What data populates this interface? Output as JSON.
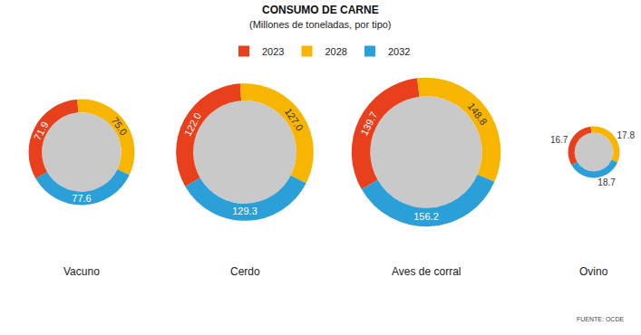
{
  "title": "CONSUMO DE CARNE",
  "subtitle": "(Millones de toneladas, por tipo)",
  "source": "FUENTE: OCDE",
  "chart_data": [
    {
      "type": "pie",
      "title": "Vacuno",
      "categories": [
        "2023",
        "2028",
        "2032"
      ],
      "values": [
        71.9,
        75.0,
        77.6
      ],
      "value_labels": [
        "71.9",
        "75.0",
        "77.6"
      ],
      "colors": [
        "#e8401c",
        "#f7b500",
        "#2a9fd8"
      ],
      "data_labels": true,
      "legend": "top"
    },
    {
      "type": "pie",
      "title": "Cerdo",
      "categories": [
        "2023",
        "2028",
        "2032"
      ],
      "values": [
        122.0,
        127.0,
        129.3
      ],
      "value_labels": [
        "122.0",
        "127.0",
        "129.3"
      ],
      "colors": [
        "#e8401c",
        "#f7b500",
        "#2a9fd8"
      ],
      "data_labels": true,
      "legend": "top"
    },
    {
      "type": "pie",
      "title": "Aves de corral",
      "categories": [
        "2023",
        "2028",
        "2032"
      ],
      "values": [
        139.7,
        148.8,
        156.2
      ],
      "value_labels": [
        "139.7",
        "148.8",
        "156.2"
      ],
      "colors": [
        "#e8401c",
        "#f7b500",
        "#2a9fd8"
      ],
      "data_labels": true,
      "legend": "top"
    },
    {
      "type": "pie",
      "title": "Ovino",
      "categories": [
        "2023",
        "2028",
        "2032"
      ],
      "values": [
        16.7,
        17.8,
        18.7
      ],
      "value_labels": [
        "16.7",
        "17.8",
        "18.7"
      ],
      "colors": [
        "#e8401c",
        "#f7b500",
        "#2a9fd8"
      ],
      "data_labels": true,
      "legend": "top"
    }
  ]
}
